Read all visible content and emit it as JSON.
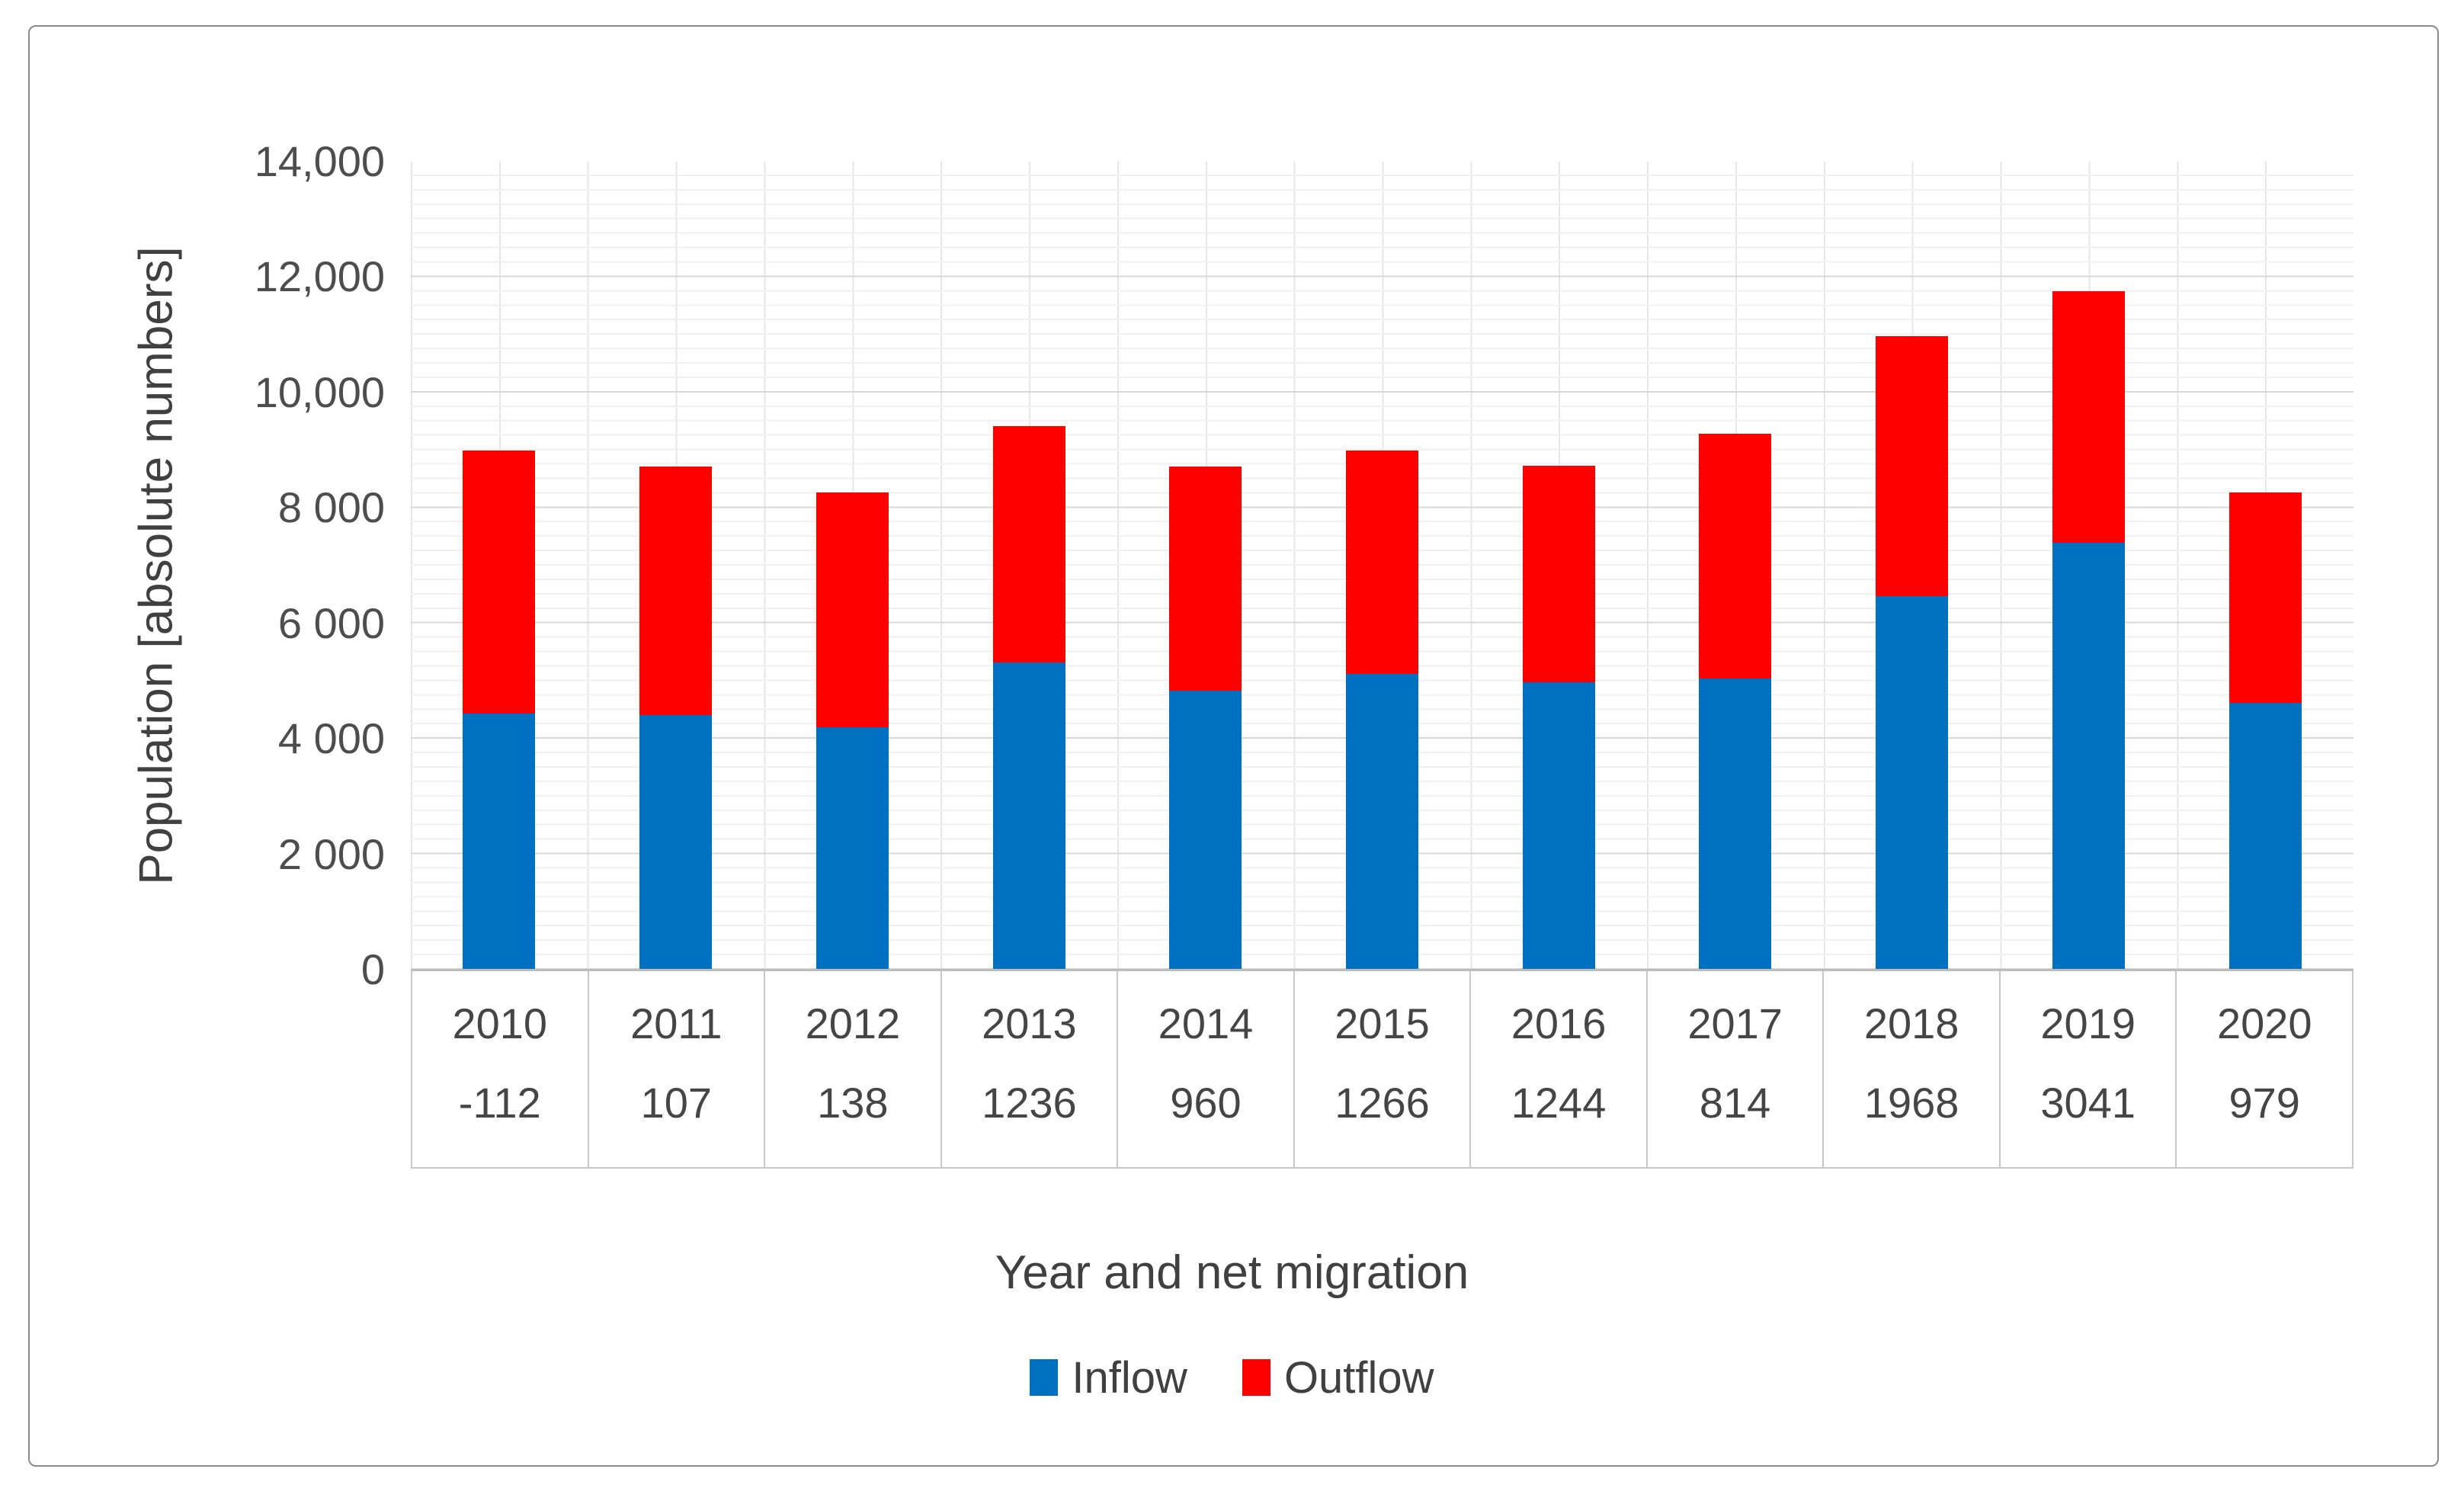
{
  "chart_data": {
    "type": "bar",
    "stacked": true,
    "title": "",
    "xlabel": "Year and net migration",
    "ylabel": "Population [absolute numbers]",
    "categories": [
      "2010",
      "2011",
      "2012",
      "2013",
      "2014",
      "2015",
      "2016",
      "2017",
      "2018",
      "2019",
      "2020"
    ],
    "net_migration": [
      "-112",
      "107",
      "138",
      "1236",
      "960",
      "1266",
      "1244",
      "814",
      "1968",
      "3041",
      "979"
    ],
    "series": [
      {
        "name": "Inflow",
        "color": "#0070C0",
        "values": [
          4444,
          4414,
          4204,
          5328,
          4840,
          5128,
          4984,
          5047,
          6474,
          7396,
          4625
        ]
      },
      {
        "name": "Outflow",
        "color": "#FF0000",
        "values": [
          4556,
          4307,
          4066,
          4092,
          3880,
          3862,
          3740,
          4233,
          4506,
          4355,
          3646
        ]
      }
    ],
    "stack_totals": [
      9000,
      8721,
      8270,
      9420,
      8720,
      8990,
      8724,
      9280,
      10980,
      11751,
      8271
    ],
    "ylim": [
      0,
      14000
    ],
    "y_major_unit": 2000,
    "y_minor_unit": 250,
    "y_tick_labels": [
      "0",
      "2 000",
      "4 000",
      "6 000",
      "8 000",
      "10,000",
      "12,000",
      "14,000"
    ],
    "grid": true,
    "legend_position": "bottom"
  }
}
